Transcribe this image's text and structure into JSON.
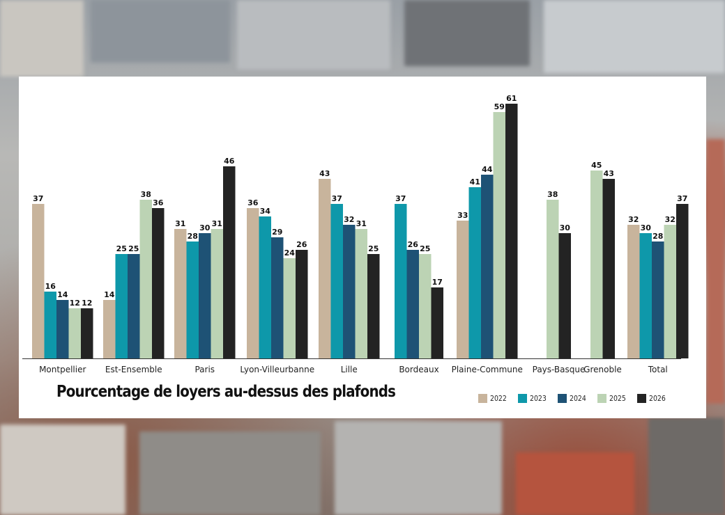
{
  "chart_data": {
    "type": "bar",
    "title": "Pourcentage de loyers au-dessus des plafonds",
    "categories": [
      "Montpellier",
      "Est-Ensemble",
      "Paris",
      "Lyon-Villeurbanne",
      "Lille",
      "Bordeaux",
      "Plaine-Commune",
      "Pays-Basque",
      "Grenoble",
      "Total"
    ],
    "series": [
      {
        "name": "2022",
        "color": "#c8b49c",
        "values": [
          37,
          14,
          31,
          36,
          43,
          null,
          33,
          null,
          null,
          32
        ]
      },
      {
        "name": "2023",
        "color": "#0e98aa",
        "values": [
          16,
          25,
          28,
          34,
          37,
          37,
          41,
          null,
          null,
          30
        ]
      },
      {
        "name": "2024",
        "color": "#1e5275",
        "values": [
          14,
          25,
          30,
          29,
          32,
          26,
          44,
          null,
          null,
          28
        ]
      },
      {
        "name": "2025",
        "color": "#bcd3b4",
        "values": [
          12,
          38,
          31,
          24,
          31,
          25,
          59,
          38,
          45,
          32
        ]
      },
      {
        "name": "2026",
        "color": "#232323",
        "values": [
          12,
          36,
          46,
          26,
          25,
          17,
          61,
          30,
          43,
          37
        ]
      }
    ],
    "ylim": [
      0,
      65
    ],
    "xlabel": "",
    "ylabel": "",
    "grid": false,
    "legend_position": "bottom-right"
  }
}
